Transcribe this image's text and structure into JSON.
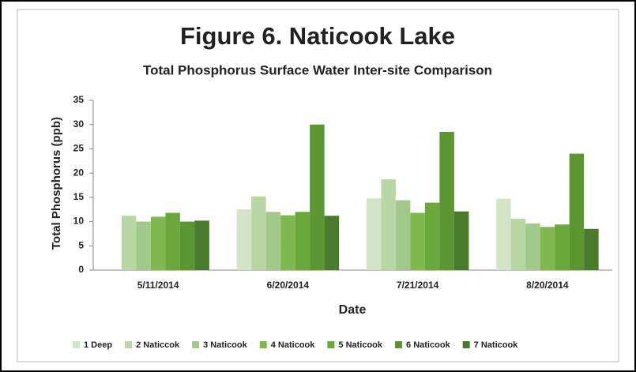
{
  "chart_data": {
    "type": "bar",
    "title": "Figure 6. Naticook Lake",
    "subtitle": "Total Phosphorus Surface Water Inter-site Comparison",
    "x_label": "Date",
    "y_label": "Total Phosphorus (ppb)",
    "categories": [
      "5/11/2014",
      "6/20/2014",
      "7/21/2014",
      "8/20/2014"
    ],
    "series": [
      {
        "name": "1 Deep",
        "color": "#d3e5c6",
        "values": [
          null,
          12.5,
          14.8,
          14.7
        ]
      },
      {
        "name": "2 Naticcok",
        "color": "#b9d7a5",
        "values": [
          11.2,
          15.2,
          18.7,
          10.6
        ]
      },
      {
        "name": "3 Naticook",
        "color": "#a2c98a",
        "values": [
          10,
          12,
          14.4,
          9.6
        ]
      },
      {
        "name": "4 Naticook",
        "color": "#7eb84f",
        "values": [
          11,
          11.3,
          11.8,
          8.9
        ]
      },
      {
        "name": "5 Naticook",
        "color": "#6aa83c",
        "values": [
          11.8,
          12,
          13.9,
          9.4
        ]
      },
      {
        "name": "6 Naticook",
        "color": "#5b9632",
        "values": [
          10,
          30,
          28.5,
          24
        ]
      },
      {
        "name": "7 Naticook",
        "color": "#4a7a2c",
        "values": [
          10.2,
          11.2,
          12.1,
          8.5
        ]
      }
    ],
    "ylim": [
      0,
      35
    ],
    "yticks": [
      0,
      5,
      10,
      15,
      20,
      25,
      30,
      35
    ],
    "grid": false,
    "legend": "bottom"
  }
}
